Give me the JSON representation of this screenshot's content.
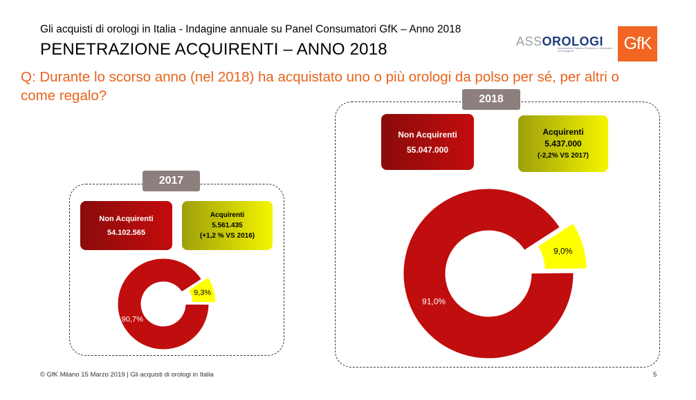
{
  "header": {
    "subtitle": "Gli acquisti di orologi in Italia - Indagine annuale su Panel Consumatori GfK – Anno 2018",
    "title": "PENETRAZIONE ACQUIRENTI – ANNO 2018",
    "question": "Q: Durante lo scorso anno (nel 2018) ha acquistato uno o più orologi da polso per sé, per altri o come regalo?"
  },
  "logos": {
    "asso_prefix": "ASS",
    "asso_brand": "OROLOGI",
    "asso_sub": "Associazione Italiana Produttori e Distributori di Orologeria",
    "gfk": "GfK",
    "gfk_color": "#f26522"
  },
  "colors": {
    "non_buyers": "#c00d0d",
    "buyers": "#ffff00",
    "accent": "#e8631c"
  },
  "panels": [
    {
      "year": "2017",
      "non_buyers_label": "Non Acquirenti",
      "non_buyers_value": "54.102.565",
      "buyers_label": "Acquirenti",
      "buyers_value": "5.561.435",
      "buyers_change": "(+1,2 % VS 2016)"
    },
    {
      "year": "2018",
      "non_buyers_label": "Non Acquirenti",
      "non_buyers_value": "55.047.000",
      "buyers_label": "Acquirenti",
      "buyers_value": "5.437.000",
      "buyers_change": "(-2,2% VS 2017)"
    }
  ],
  "chart_data": [
    {
      "type": "pie",
      "subtype": "donut",
      "title": "2017",
      "categories": [
        "Non Acquirenti",
        "Acquirenti"
      ],
      "values": [
        90.7,
        9.3
      ],
      "labels": [
        "90,7%",
        "9,3%"
      ],
      "exploded": "Acquirenti",
      "colors": [
        "#c00d0d",
        "#ffff00"
      ]
    },
    {
      "type": "pie",
      "subtype": "donut",
      "title": "2018",
      "categories": [
        "Non Acquirenti",
        "Acquirenti"
      ],
      "values": [
        91.0,
        9.0
      ],
      "labels": [
        "91,0%",
        "9,0%"
      ],
      "exploded": "Acquirenti",
      "colors": [
        "#c00d0d",
        "#ffff00"
      ]
    }
  ],
  "footer": {
    "text": "© GfK Milano 15 Marzo 2019 | Gli acquisti di orologi in Italia",
    "page": "5"
  }
}
